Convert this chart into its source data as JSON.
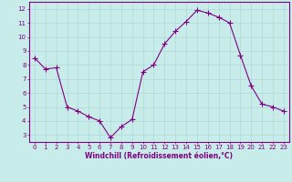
{
  "x": [
    0,
    1,
    2,
    3,
    4,
    5,
    6,
    7,
    8,
    9,
    10,
    11,
    12,
    13,
    14,
    15,
    16,
    17,
    18,
    19,
    20,
    21,
    22,
    23
  ],
  "y": [
    8.5,
    7.7,
    7.8,
    5.0,
    4.7,
    4.3,
    4.0,
    2.8,
    3.6,
    4.1,
    7.5,
    8.0,
    9.5,
    10.4,
    11.1,
    11.9,
    11.7,
    11.4,
    11.0,
    8.7,
    6.5,
    5.2,
    5.0,
    4.7
  ],
  "line_color": "#800080",
  "marker": "+",
  "marker_size": 4,
  "bg_color": "#c8ecea",
  "grid_color": "#b0d8d8",
  "xlim": [
    -0.5,
    23.5
  ],
  "ylim": [
    2.5,
    12.5
  ],
  "yticks": [
    3,
    4,
    5,
    6,
    7,
    8,
    9,
    10,
    11,
    12
  ],
  "xticks": [
    0,
    1,
    2,
    3,
    4,
    5,
    6,
    7,
    8,
    9,
    10,
    11,
    12,
    13,
    14,
    15,
    16,
    17,
    18,
    19,
    20,
    21,
    22,
    23
  ],
  "tick_color": "#800080",
  "label_color": "#800080",
  "xlabel": "Windchill (Refroidissement éolien,°C)",
  "spine_color": "#800080",
  "tick_fontsize": 5.0,
  "xlabel_fontsize": 5.5
}
